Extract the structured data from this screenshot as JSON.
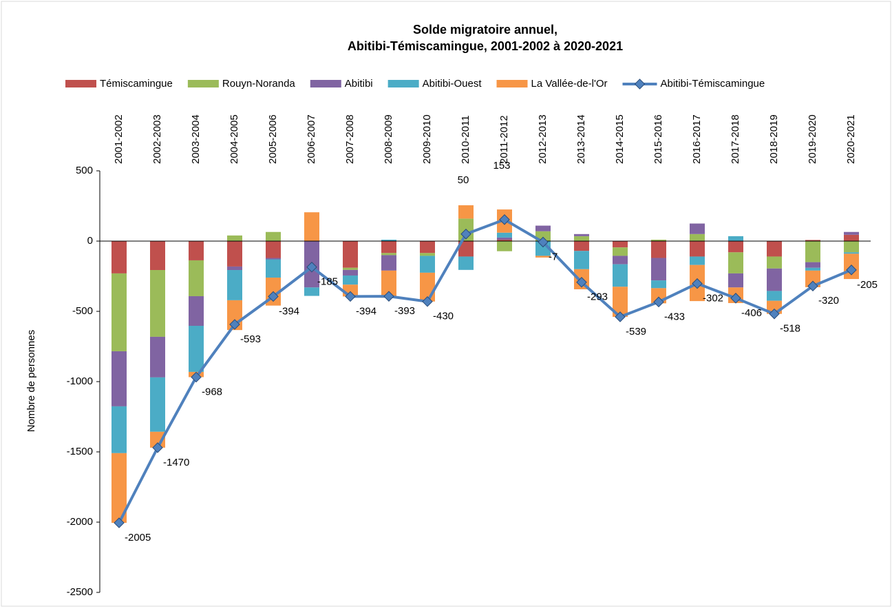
{
  "chart_data": {
    "type": "stacked-bar-line",
    "title": [
      "Solde migratoire annuel,",
      "Abitibi-Témiscamingue, 2001-2002 à 2020-2021"
    ],
    "y_label": "Nombre de personnes",
    "categories": [
      "2001-2002",
      "2002-2003",
      "2003-2004",
      "2004-2005",
      "2005-2006",
      "2006-2007",
      "2007-2008",
      "2008-2009",
      "2009-2010",
      "2010-2011",
      "2011-2012",
      "2012-2013",
      "2013-2014",
      "2014-2015",
      "2015-2016",
      "2016-2017",
      "2017-2018",
      "2018-2019",
      "2019-2020",
      "2020-2021"
    ],
    "series": [
      {
        "name": "Témiscamingue",
        "color": "#c0504d",
        "values": [
          -230,
          -206,
          -137,
          -181,
          -120,
          0,
          -190,
          -85,
          -85,
          -110,
          10,
          0,
          -70,
          -45,
          -120,
          -110,
          -80,
          -110,
          8,
          45
        ]
      },
      {
        "name": "Rouyn-Noranda",
        "color": "#9bbb59",
        "values": [
          -554,
          -475,
          -255,
          40,
          65,
          0,
          -15,
          -15,
          -20,
          160,
          -72,
          70,
          35,
          -60,
          10,
          50,
          -150,
          -85,
          -150,
          -80
        ]
      },
      {
        "name": "Abitibi",
        "color": "#8064a2",
        "values": [
          -392,
          -289,
          -211,
          -25,
          -10,
          -330,
          -40,
          -110,
          0,
          0,
          15,
          40,
          15,
          -60,
          -160,
          75,
          -100,
          -160,
          -40,
          20
        ]
      },
      {
        "name": "Abitibi-Ouest",
        "color": "#4bacc6",
        "values": [
          -333,
          -387,
          -328,
          -215,
          -130,
          -60,
          -65,
          10,
          -120,
          -95,
          35,
          -105,
          -130,
          -160,
          -55,
          -60,
          35,
          -70,
          -20,
          -10
        ]
      },
      {
        "name": "La Vallée-de-l'Or",
        "color": "#f79646",
        "values": [
          -496,
          -113,
          -37,
          -212,
          -199,
          205,
          -84,
          -193,
          -205,
          95,
          165,
          -12,
          -143,
          -214,
          -108,
          -257,
          -111,
          -93,
          -118,
          -180
        ]
      }
    ],
    "line": {
      "name": "Abitibi-Témiscamingue",
      "color": "#4f81bd",
      "values": [
        -2005,
        -1470,
        -968,
        -593,
        -394,
        -185,
        -394,
        -393,
        -430,
        50,
        153,
        -7,
        -293,
        -539,
        -433,
        -302,
        -406,
        -518,
        -320,
        -205
      ]
    },
    "ylim": [
      -2500,
      500
    ],
    "yticks": [
      -2500,
      -2000,
      -1500,
      -1000,
      -500,
      0,
      500
    ],
    "legend": "top"
  }
}
